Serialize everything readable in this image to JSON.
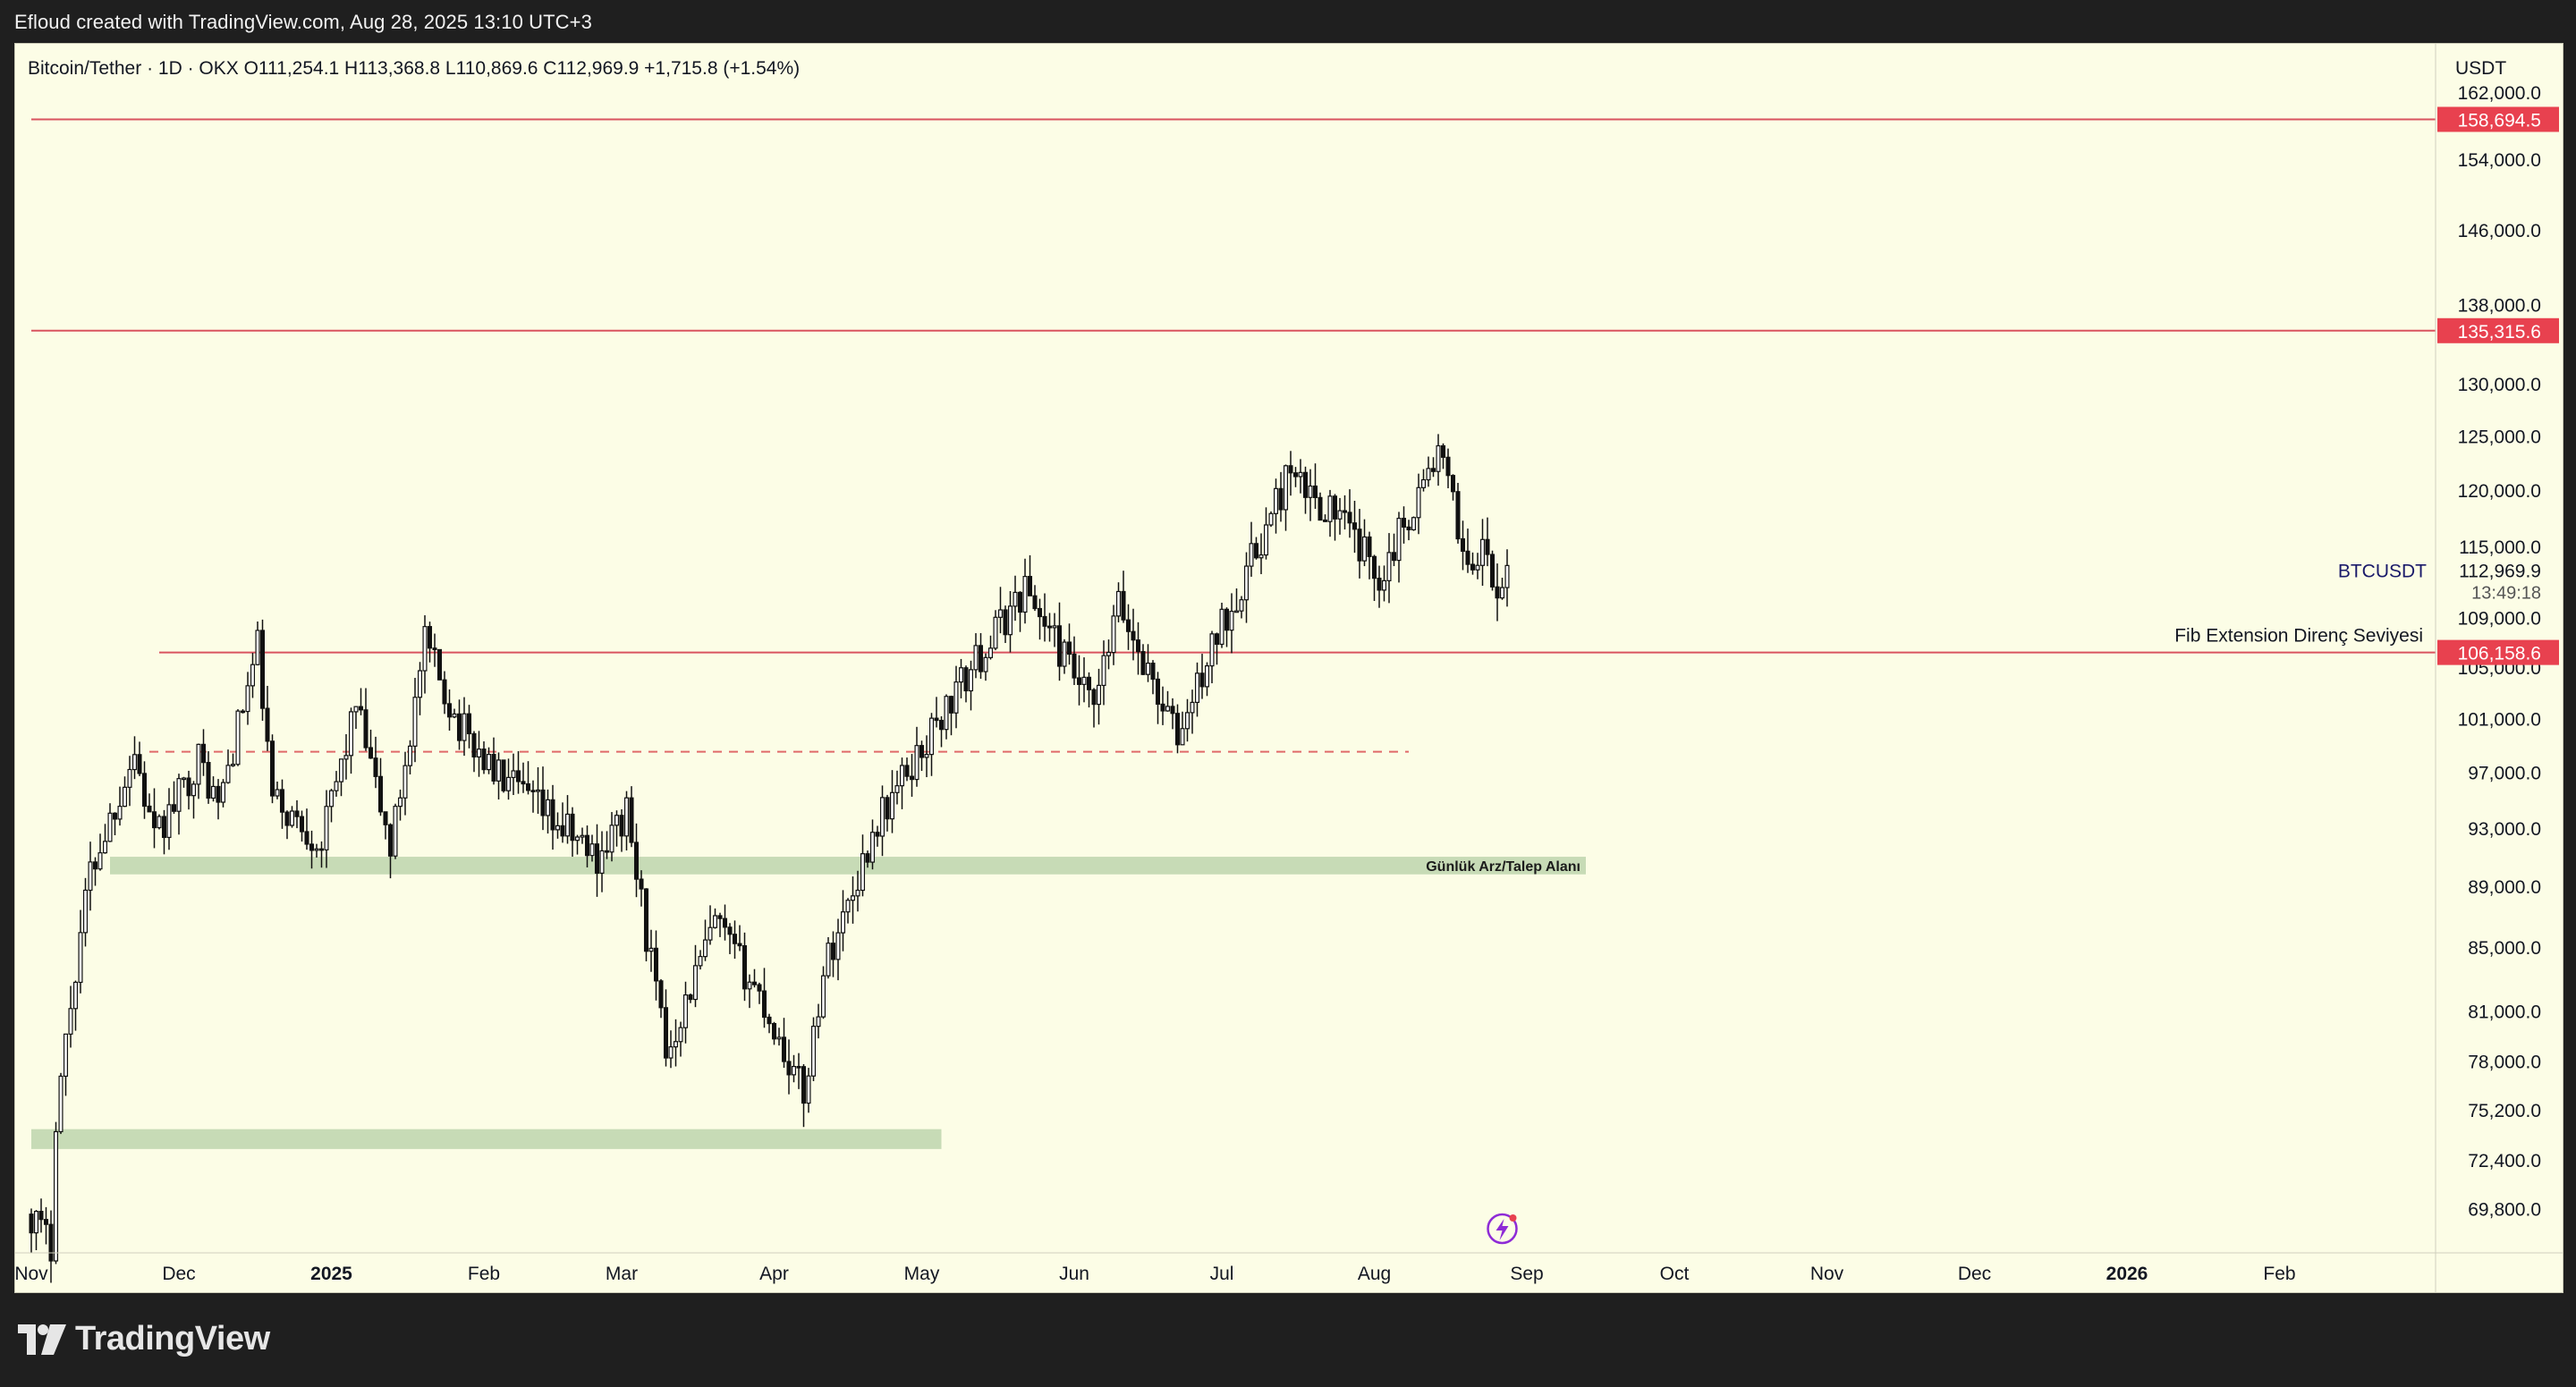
{
  "caption": "Efloud created with TradingView.com, Aug 28, 2025 13:10 UTC+3",
  "brand": {
    "name": "TradingView"
  },
  "colors": {
    "background": "#fcfde6",
    "page": "#1f1f1f",
    "candle": "#111111",
    "resistance_line": "#d9535f",
    "label_red": "#e8414f",
    "zone": "#c7dbb6",
    "dashed": "#e06a6a",
    "axis_text": "#131722"
  },
  "icons": {
    "event": "lightning-icon",
    "logo": "tradingview-logo-icon"
  },
  "chart_data": {
    "type": "candlestick",
    "symbol_line": "Bitcoin/Tether · 1D · OKX  O111,254.1  H113,368.8  L110,869.6  C112,969.9  +1,715.8 (+1.54%)",
    "currency": "USDT",
    "scale": "log",
    "ylim": [
      67500,
      168000
    ],
    "y_ticks": [
      "162,000.0",
      "154,000.0",
      "146,000.0",
      "138,000.0",
      "130,000.0",
      "125,000.0",
      "120,000.0",
      "115,000.0",
      "109,000.0",
      "105,000.0",
      "101,000.0",
      "97,000.0",
      "93,000.0",
      "89,000.0",
      "85,000.0",
      "81,000.0",
      "78,000.0",
      "75,200.0",
      "72,400.0",
      "69,800.0"
    ],
    "x_ticks": [
      "Nov",
      "Dec",
      "2025",
      "Feb",
      "Mar",
      "Apr",
      "May",
      "Jun",
      "Jul",
      "Aug",
      "Sep",
      "Oct",
      "Nov",
      "Dec",
      "2026",
      "Feb"
    ],
    "x_range": [
      "2024-11-01",
      "2026-02-28"
    ],
    "horizontal_lines": [
      {
        "price": 158694.5,
        "label": "158,694.5",
        "start": "2024-11-01",
        "style": "solid"
      },
      {
        "price": 135315.6,
        "label": "135,315.6",
        "start": "2024-11-01",
        "style": "solid"
      },
      {
        "price": 106158.6,
        "label": "106,158.6",
        "start": "2024-11-27",
        "style": "solid",
        "text": "Fib Extension Direnç Seviyesi"
      },
      {
        "price": 98500,
        "start": "2024-11-25",
        "end": "2025-08-08",
        "style": "dashed"
      }
    ],
    "zones": [
      {
        "low": 89800,
        "high": 91000,
        "start": "2024-11-17",
        "end": "2025-09-13",
        "label": "Günlük Arz/Talep Alanı"
      },
      {
        "low": 73000,
        "high": 74100,
        "start": "2024-11-01",
        "end": "2025-05-05"
      }
    ],
    "last_price": {
      "symbol": "BTCUSDT",
      "price": "112,969.9",
      "countdown": "13:49:18"
    },
    "anchors": [
      [
        "2024-11-01",
        69500
      ],
      [
        "2024-11-05",
        67800
      ],
      [
        "2024-11-06",
        75000
      ],
      [
        "2024-11-11",
        86000
      ],
      [
        "2024-11-13",
        90000
      ],
      [
        "2024-11-22",
        98500
      ],
      [
        "2024-11-26",
        92000
      ],
      [
        "2024-12-05",
        98000
      ],
      [
        "2024-12-09",
        94500
      ],
      [
        "2024-12-17",
        106500
      ],
      [
        "2024-12-20",
        95000
      ],
      [
        "2024-12-30",
        92000
      ],
      [
        "2025-01-06",
        102000
      ],
      [
        "2025-01-13",
        91500
      ],
      [
        "2025-01-20",
        106800
      ],
      [
        "2025-01-27",
        100500
      ],
      [
        "2025-02-03",
        97000
      ],
      [
        "2025-02-24",
        91000
      ],
      [
        "2025-03-02",
        94000
      ],
      [
        "2025-03-10",
        78500
      ],
      [
        "2025-03-20",
        86500
      ],
      [
        "2025-03-29",
        82000
      ],
      [
        "2025-04-07",
        76000
      ],
      [
        "2025-04-11",
        83500
      ],
      [
        "2025-04-22",
        93500
      ],
      [
        "2025-05-08",
        103000
      ],
      [
        "2025-05-22",
        111500
      ],
      [
        "2025-06-05",
        101500
      ],
      [
        "2025-06-10",
        110000
      ],
      [
        "2025-06-22",
        99500
      ],
      [
        "2025-06-30",
        107500
      ],
      [
        "2025-07-11",
        117500
      ],
      [
        "2025-07-14",
        121000
      ],
      [
        "2025-07-24",
        118000
      ],
      [
        "2025-08-02",
        112500
      ],
      [
        "2025-08-14",
        123500
      ],
      [
        "2025-08-20",
        113500
      ],
      [
        "2025-08-24",
        114500
      ],
      [
        "2025-08-26",
        109500
      ],
      [
        "2025-08-28",
        112970
      ]
    ]
  }
}
